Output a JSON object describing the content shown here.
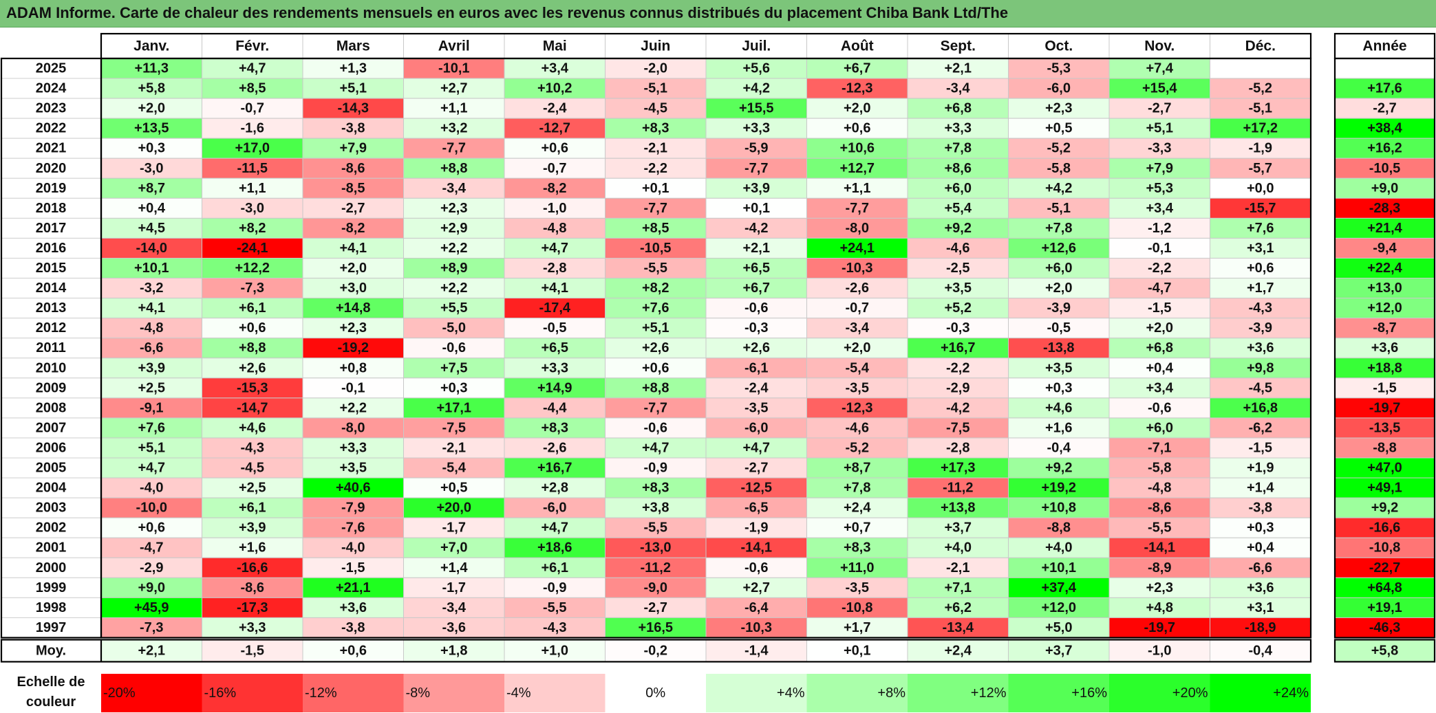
{
  "title": "ADAM Informe. Carte de chaleur des rendements mensuels en euros avec les revenus connus distribués du placement Chiba Bank Ltd/The",
  "chart_data": {
    "type": "heatmap",
    "months": [
      "Janv.",
      "Févr.",
      "Mars",
      "Avril",
      "Mai",
      "Juin",
      "Juil.",
      "Août",
      "Sept.",
      "Oct.",
      "Nov.",
      "Déc."
    ],
    "year_column_label": "Année",
    "rows": [
      {
        "year": "2025",
        "values": [
          "+11,3",
          "+4,7",
          "+1,3",
          "-10,1",
          "+3,4",
          "-2,0",
          "+5,6",
          "+6,7",
          "+2,1",
          "-5,3",
          "+7,4",
          ""
        ],
        "annual": ""
      },
      {
        "year": "2024",
        "values": [
          "+5,8",
          "+8,5",
          "+5,1",
          "+2,7",
          "+10,2",
          "-5,1",
          "+4,2",
          "-12,3",
          "-3,4",
          "-6,0",
          "+15,4",
          "-5,2"
        ],
        "annual": "+17,6"
      },
      {
        "year": "2023",
        "values": [
          "+2,0",
          "-0,7",
          "-14,3",
          "+1,1",
          "-2,4",
          "-4,5",
          "+15,5",
          "+2,0",
          "+6,8",
          "+2,3",
          "-2,7",
          "-5,1"
        ],
        "annual": "-2,7"
      },
      {
        "year": "2022",
        "values": [
          "+13,5",
          "-1,6",
          "-3,8",
          "+3,2",
          "-12,7",
          "+8,3",
          "+3,3",
          "+0,6",
          "+3,3",
          "+0,5",
          "+5,1",
          "+17,2"
        ],
        "annual": "+38,4"
      },
      {
        "year": "2021",
        "values": [
          "+0,3",
          "+17,0",
          "+7,9",
          "-7,7",
          "+0,6",
          "-2,1",
          "-5,9",
          "+10,6",
          "+7,8",
          "-5,2",
          "-3,3",
          "-1,9"
        ],
        "annual": "+16,2"
      },
      {
        "year": "2020",
        "values": [
          "-3,0",
          "-11,5",
          "-8,6",
          "+8,8",
          "-0,7",
          "-2,2",
          "-7,7",
          "+12,7",
          "+8,6",
          "-5,8",
          "+7,9",
          "-5,7"
        ],
        "annual": "-10,5"
      },
      {
        "year": "2019",
        "values": [
          "+8,7",
          "+1,1",
          "-8,5",
          "-3,4",
          "-8,2",
          "+0,1",
          "+3,9",
          "+1,1",
          "+6,0",
          "+4,2",
          "+5,3",
          "+0,0"
        ],
        "annual": "+9,0"
      },
      {
        "year": "2018",
        "values": [
          "+0,4",
          "-3,0",
          "-2,7",
          "+2,3",
          "-1,0",
          "-7,7",
          "+0,1",
          "-7,7",
          "+5,4",
          "-5,1",
          "+3,4",
          "-15,7"
        ],
        "annual": "-28,3"
      },
      {
        "year": "2017",
        "values": [
          "+4,5",
          "+8,2",
          "-8,2",
          "+2,9",
          "-4,8",
          "+8,5",
          "-4,2",
          "-8,0",
          "+9,2",
          "+7,8",
          "-1,2",
          "+7,6"
        ],
        "annual": "+21,4"
      },
      {
        "year": "2016",
        "values": [
          "-14,0",
          "-24,1",
          "+4,1",
          "+2,2",
          "+4,7",
          "-10,5",
          "+2,1",
          "+24,1",
          "-4,6",
          "+12,6",
          "-0,1",
          "+3,1"
        ],
        "annual": "-9,4"
      },
      {
        "year": "2015",
        "values": [
          "+10,1",
          "+12,2",
          "+2,0",
          "+8,9",
          "-2,8",
          "-5,5",
          "+6,5",
          "-10,3",
          "-2,5",
          "+6,0",
          "-2,2",
          "+0,6"
        ],
        "annual": "+22,4"
      },
      {
        "year": "2014",
        "values": [
          "-3,2",
          "-7,3",
          "+3,0",
          "+2,2",
          "+4,1",
          "+8,2",
          "+6,7",
          "-2,6",
          "+3,5",
          "+2,0",
          "-4,7",
          "+1,7"
        ],
        "annual": "+13,0"
      },
      {
        "year": "2013",
        "values": [
          "+4,1",
          "+6,1",
          "+14,8",
          "+5,5",
          "-17,4",
          "+7,6",
          "-0,6",
          "-0,7",
          "+5,2",
          "-3,9",
          "-1,5",
          "-4,3"
        ],
        "annual": "+12,0"
      },
      {
        "year": "2012",
        "values": [
          "-4,8",
          "+0,6",
          "+2,3",
          "-5,0",
          "-0,5",
          "+5,1",
          "-0,3",
          "-3,4",
          "-0,3",
          "-0,5",
          "+2,0",
          "-3,9"
        ],
        "annual": "-8,7"
      },
      {
        "year": "2011",
        "values": [
          "-6,6",
          "+8,8",
          "-19,2",
          "-0,6",
          "+6,5",
          "+2,6",
          "+2,6",
          "+2,0",
          "+16,7",
          "-13,8",
          "+6,8",
          "+3,6"
        ],
        "annual": "+3,6"
      },
      {
        "year": "2010",
        "values": [
          "+3,9",
          "+2,6",
          "+0,8",
          "+7,5",
          "+3,3",
          "+0,6",
          "-6,1",
          "-5,4",
          "-2,2",
          "+3,5",
          "+0,4",
          "+9,8"
        ],
        "annual": "+18,8"
      },
      {
        "year": "2009",
        "values": [
          "+2,5",
          "-15,3",
          "-0,1",
          "+0,3",
          "+14,9",
          "+8,8",
          "-2,4",
          "-3,5",
          "-2,9",
          "+0,3",
          "+3,4",
          "-4,5"
        ],
        "annual": "-1,5"
      },
      {
        "year": "2008",
        "values": [
          "-9,1",
          "-14,7",
          "+2,2",
          "+17,1",
          "-4,4",
          "-7,7",
          "-3,5",
          "-12,3",
          "-4,2",
          "+4,6",
          "-0,6",
          "+16,8"
        ],
        "annual": "-19,7"
      },
      {
        "year": "2007",
        "values": [
          "+7,6",
          "+4,6",
          "-8,0",
          "-7,5",
          "+8,3",
          "-0,6",
          "-6,0",
          "-4,6",
          "-7,5",
          "+1,6",
          "+6,0",
          "-6,2"
        ],
        "annual": "-13,5"
      },
      {
        "year": "2006",
        "values": [
          "+5,1",
          "-4,3",
          "+3,3",
          "-2,1",
          "-2,6",
          "+4,7",
          "+4,7",
          "-5,2",
          "-2,8",
          "-0,4",
          "-7,1",
          "-1,5"
        ],
        "annual": "-8,8"
      },
      {
        "year": "2005",
        "values": [
          "+4,7",
          "-4,5",
          "+3,5",
          "-5,4",
          "+16,7",
          "-0,9",
          "-2,7",
          "+8,7",
          "+17,3",
          "+9,2",
          "-5,8",
          "+1,9"
        ],
        "annual": "+47,0"
      },
      {
        "year": "2004",
        "values": [
          "-4,0",
          "+2,5",
          "+40,6",
          "+0,5",
          "+2,8",
          "+8,3",
          "-12,5",
          "+7,8",
          "-11,2",
          "+19,2",
          "-4,8",
          "+1,4"
        ],
        "annual": "+49,1"
      },
      {
        "year": "2003",
        "values": [
          "-10,0",
          "+6,1",
          "-7,9",
          "+20,0",
          "-6,0",
          "+3,8",
          "-6,5",
          "+2,4",
          "+13,8",
          "+10,8",
          "-8,6",
          "-3,8"
        ],
        "annual": "+9,2"
      },
      {
        "year": "2002",
        "values": [
          "+0,6",
          "+3,9",
          "-7,6",
          "-1,7",
          "+4,7",
          "-5,5",
          "-1,9",
          "+0,7",
          "+3,7",
          "-8,8",
          "-5,5",
          "+0,3"
        ],
        "annual": "-16,6"
      },
      {
        "year": "2001",
        "values": [
          "-4,7",
          "+1,6",
          "-4,0",
          "+7,0",
          "+18,6",
          "-13,0",
          "-14,1",
          "+8,3",
          "+4,0",
          "+4,0",
          "-14,1",
          "+0,4"
        ],
        "annual": "-10,8"
      },
      {
        "year": "2000",
        "values": [
          "-2,9",
          "-16,6",
          "-1,5",
          "+1,4",
          "+6,1",
          "-11,2",
          "-0,6",
          "+11,0",
          "-2,1",
          "+10,1",
          "-8,9",
          "-6,6"
        ],
        "annual": "-22,7"
      },
      {
        "year": "1999",
        "values": [
          "+9,0",
          "-8,6",
          "+21,1",
          "-1,7",
          "-0,9",
          "-9,0",
          "+2,7",
          "-3,5",
          "+7,1",
          "+37,4",
          "+2,3",
          "+3,6"
        ],
        "annual": "+64,8"
      },
      {
        "year": "1998",
        "values": [
          "+45,9",
          "-17,3",
          "+3,6",
          "-3,4",
          "-5,5",
          "-2,7",
          "-6,4",
          "-10,8",
          "+6,2",
          "+12,0",
          "+4,8",
          "+3,1"
        ],
        "annual": "+19,1"
      },
      {
        "year": "1997",
        "values": [
          "-7,3",
          "+3,3",
          "-3,8",
          "-3,6",
          "-4,3",
          "+16,5",
          "-10,3",
          "+1,7",
          "-13,4",
          "+5,0",
          "-19,7",
          "-18,9"
        ],
        "annual": "-46,3"
      }
    ],
    "average": {
      "label": "Moy.",
      "values": [
        "+2,1",
        "-1,5",
        "+0,6",
        "+1,8",
        "+1,0",
        "-0,2",
        "-1,4",
        "+0,1",
        "+2,4",
        "+3,7",
        "-1,0",
        "-0,4"
      ],
      "annual": "+5,8"
    },
    "color_scale": {
      "label_line1": "Echelle de",
      "label_line2": "couleur",
      "stops": [
        "-20%",
        "-16%",
        "-12%",
        "-8%",
        "-4%",
        "0%",
        "+4%",
        "+8%",
        "+12%",
        "+16%",
        "+20%",
        "+24%"
      ],
      "stop_values": [
        -20,
        -16,
        -12,
        -8,
        -4,
        0,
        4,
        8,
        12,
        16,
        20,
        24
      ],
      "negative_color": "#ff0000",
      "neutral_color": "#ffffff",
      "positive_color": "#00ff00"
    }
  }
}
